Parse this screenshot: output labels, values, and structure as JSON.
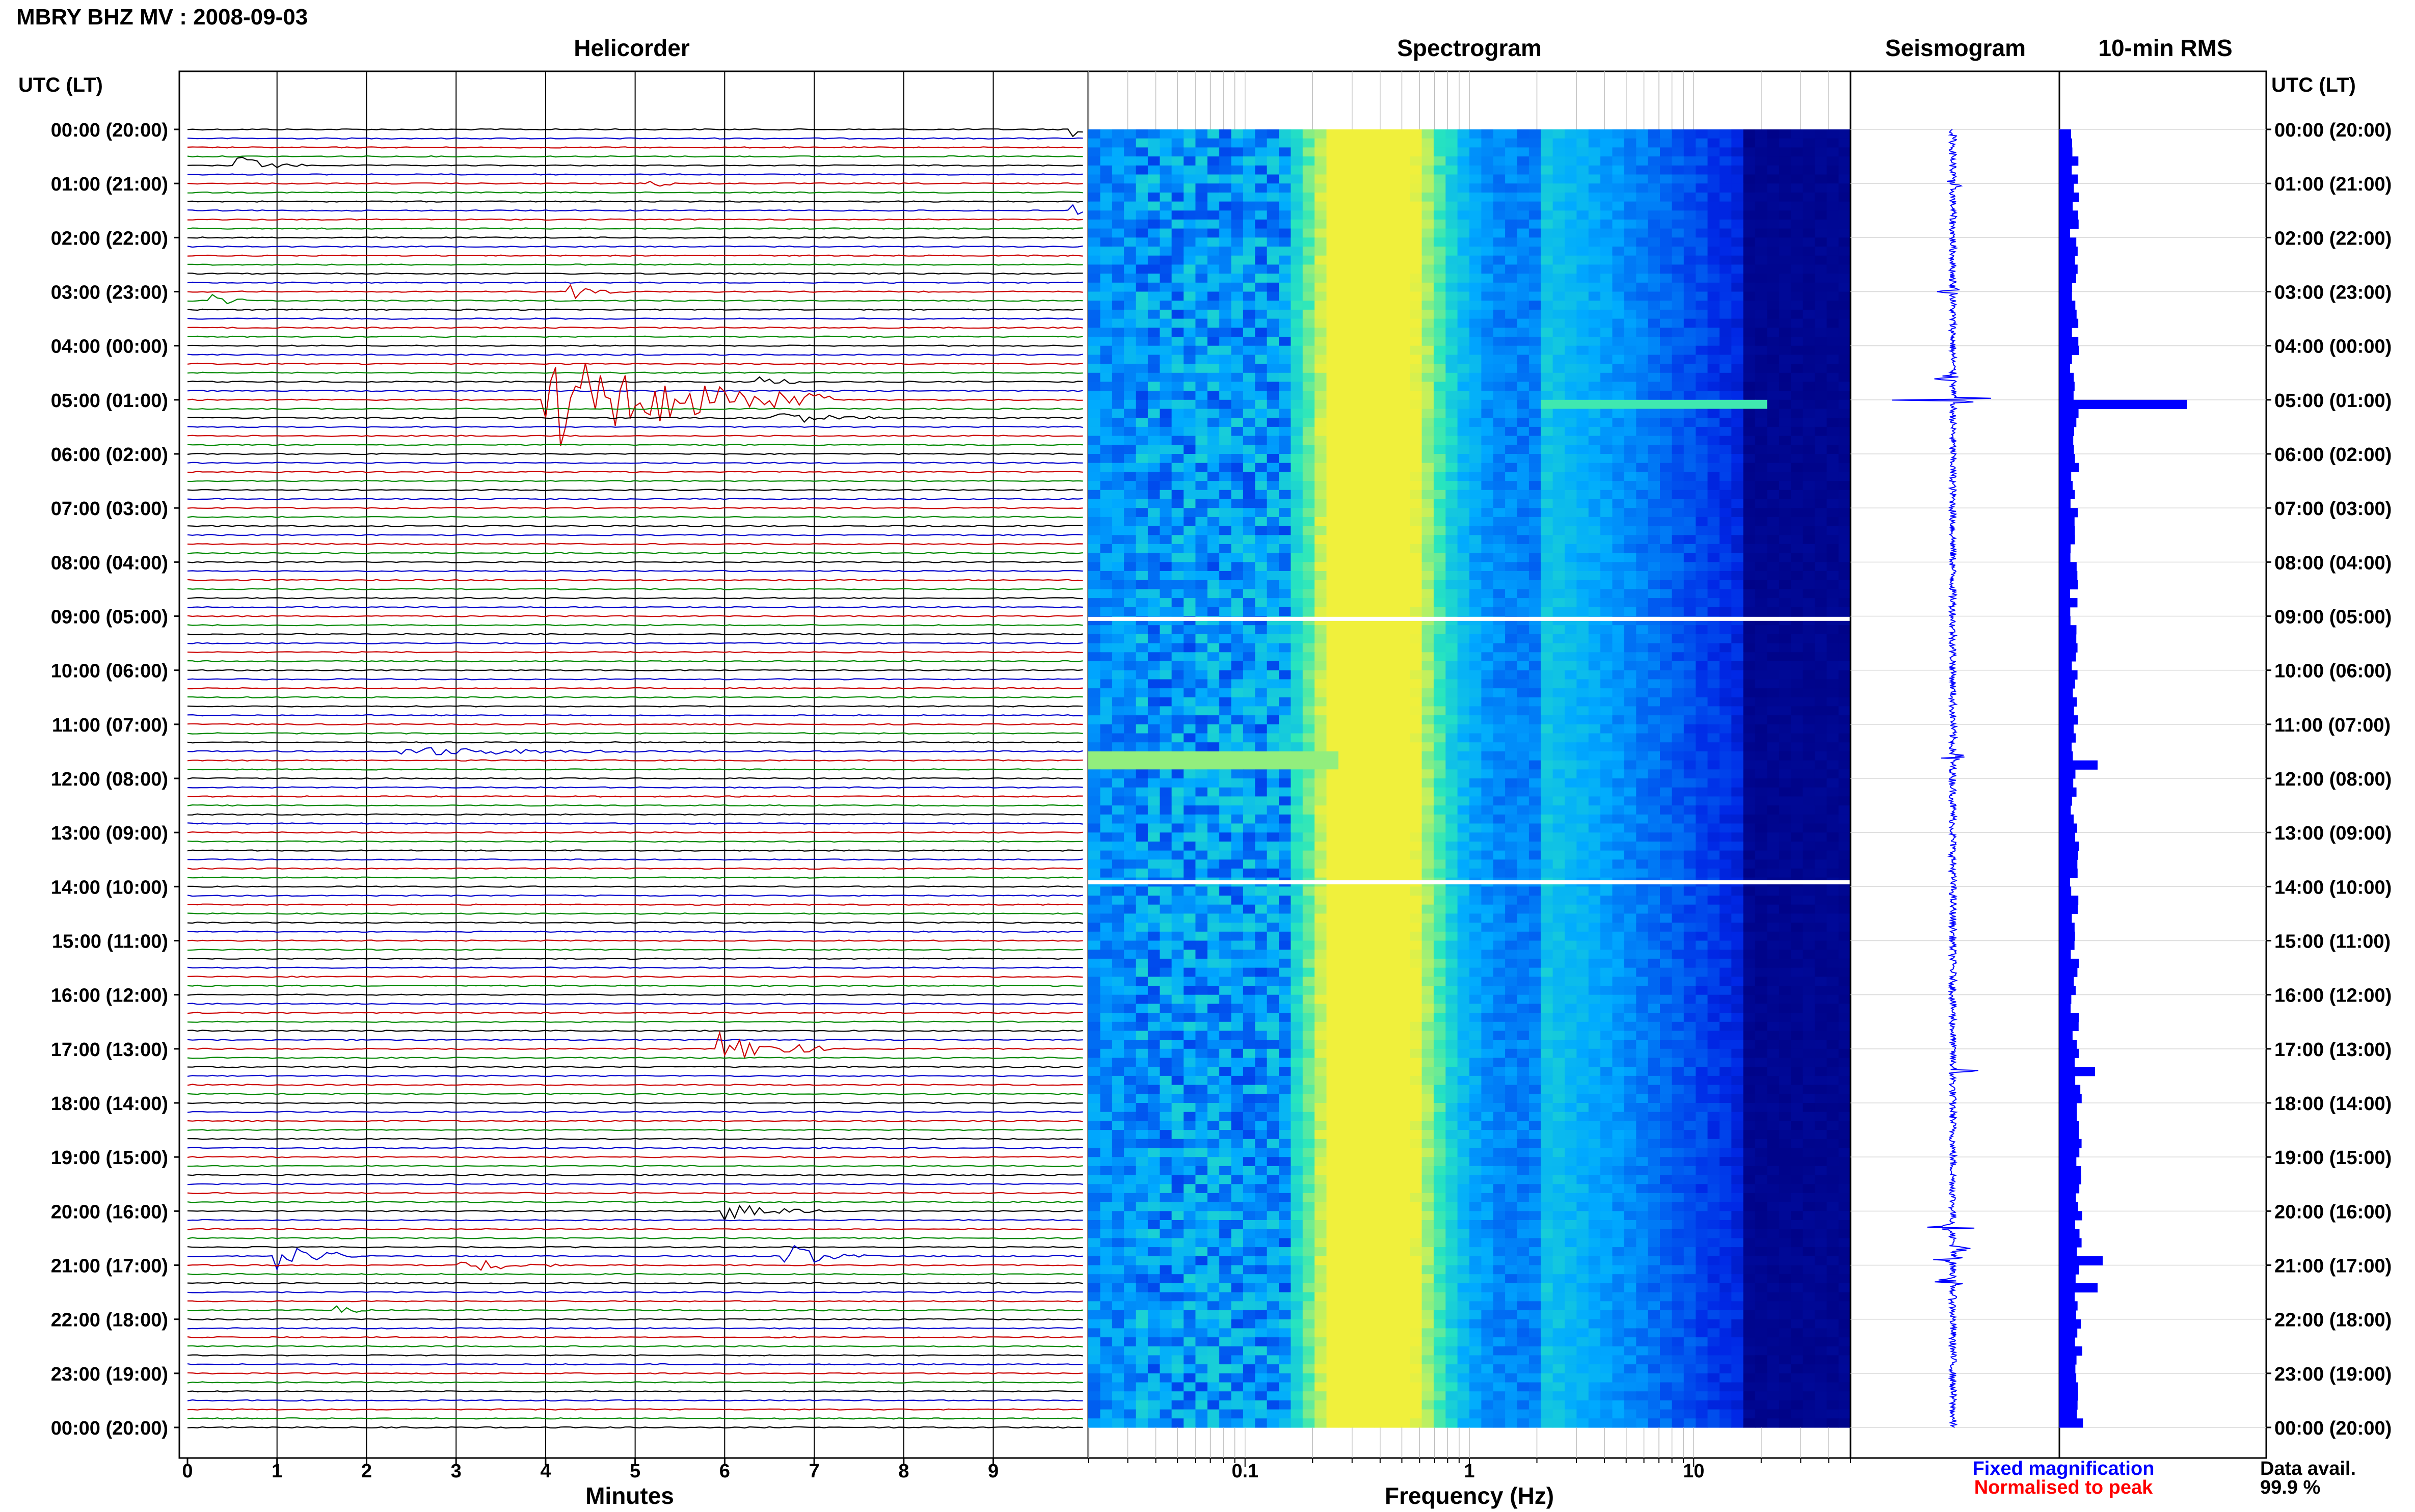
{
  "header": {
    "title": "MBRY BHZ MV : 2008-09-03",
    "utc_label_left": "UTC (LT)",
    "utc_label_right": "UTC (LT)"
  },
  "panels": {
    "helicorder": "Helicorder",
    "spectrogram": "Spectrogram",
    "seismogram": "Seismogram",
    "rms": "10-min RMS"
  },
  "time_labels": [
    "00:00 (20:00)",
    "01:00 (21:00)",
    "02:00 (22:00)",
    "03:00 (23:00)",
    "04:00 (00:00)",
    "05:00 (01:00)",
    "06:00 (02:00)",
    "07:00 (03:00)",
    "08:00 (04:00)",
    "09:00 (05:00)",
    "10:00 (06:00)",
    "11:00 (07:00)",
    "12:00 (08:00)",
    "13:00 (09:00)",
    "14:00 (10:00)",
    "15:00 (11:00)",
    "16:00 (12:00)",
    "17:00 (13:00)",
    "18:00 (14:00)",
    "19:00 (15:00)",
    "20:00 (16:00)",
    "21:00 (17:00)",
    "22:00 (18:00)",
    "23:00 (19:00)",
    "00:00 (20:00)"
  ],
  "axes": {
    "minutes_label": "Minutes",
    "minutes_ticks": [
      "0",
      "1",
      "2",
      "3",
      "4",
      "5",
      "6",
      "7",
      "8",
      "9"
    ],
    "frequency_label": "Frequency (Hz)",
    "frequency_ticks": [
      "0.1",
      "1",
      "10"
    ]
  },
  "legend": {
    "fixed": "Fixed magnification",
    "normalised": "Normalised to peak",
    "fixed_color": "#0000ff",
    "normalised_color": "#ff0000"
  },
  "availability": {
    "label": "Data avail.",
    "value": "99.9 %"
  },
  "colors": {
    "trace_cycle": [
      "#000000",
      "#0000cc",
      "#cc0000",
      "#008800"
    ],
    "spectrogram_low": "#000080",
    "spectrogram_high": "#e8f040",
    "seismogram": "#0000ff",
    "rms": "#0000ff"
  },
  "chart_data": [
    {
      "type": "line",
      "name": "helicorder",
      "x_unit": "minutes",
      "xlim": [
        0,
        10
      ],
      "rows_per_hour": 6,
      "row_minutes": 10,
      "hours": 24,
      "events": [
        {
          "hour": 0,
          "row": 0,
          "minute": 9.9,
          "amp": 0.4,
          "dur": 0.2
        },
        {
          "hour": 0,
          "row": 4,
          "minute": 0.6,
          "amp": 0.5,
          "dur": 0.3
        },
        {
          "hour": 1,
          "row": 0,
          "minute": 5.2,
          "amp": 0.3,
          "dur": 0.2
        },
        {
          "hour": 1,
          "row": 3,
          "minute": 9.9,
          "amp": 0.4,
          "dur": 0.2
        },
        {
          "hour": 3,
          "row": 0,
          "minute": 4.3,
          "amp": 0.45,
          "dur": 0.25
        },
        {
          "hour": 3,
          "row": 1,
          "minute": 0.3,
          "amp": 0.35,
          "dur": 0.2
        },
        {
          "hour": 4,
          "row": 4,
          "minute": 6.4,
          "amp": 0.5,
          "dur": 0.2
        },
        {
          "hour": 4,
          "row": 6,
          "minute": 4.0,
          "amp": 3.2,
          "dur": 1.3
        },
        {
          "hour": 5,
          "row": 2,
          "minute": 6.6,
          "amp": 0.4,
          "dur": 0.5
        },
        {
          "hour": 11,
          "row": 3,
          "minute": 2.4,
          "amp": 0.3,
          "dur": 1.4
        },
        {
          "hour": 16,
          "row": 6,
          "minute": 5.9,
          "amp": 1.0,
          "dur": 0.6
        },
        {
          "hour": 20,
          "row": 0,
          "minute": 6.0,
          "amp": 0.6,
          "dur": 0.5
        },
        {
          "hour": 20,
          "row": 5,
          "minute": 1.0,
          "amp": 0.9,
          "dur": 0.3
        },
        {
          "hour": 20,
          "row": 5,
          "minute": 6.7,
          "amp": 0.8,
          "dur": 0.4
        },
        {
          "hour": 20,
          "row": 5,
          "minute": 1.6,
          "amp": 0.3,
          "dur": 0.2
        },
        {
          "hour": 21,
          "row": 0,
          "minute": 3.1,
          "amp": 0.4,
          "dur": 0.6
        },
        {
          "hour": 21,
          "row": 5,
          "minute": 1.7,
          "amp": 0.3,
          "dur": 0.2
        }
      ]
    },
    {
      "type": "heatmap",
      "name": "spectrogram",
      "x_scale": "log",
      "xlim": [
        0.02,
        50
      ],
      "x_ticks": [
        0.1,
        1,
        10
      ],
      "ylim_hours": [
        0,
        24
      ],
      "peak_band_hz": [
        0.2,
        0.6
      ],
      "gaps_hours": [
        9.05,
        13.92
      ]
    },
    {
      "type": "line",
      "name": "seismogram",
      "ylim_hours": [
        0,
        24
      ],
      "bursts_hours": [
        1.0,
        3.0,
        4.6,
        5.0,
        11.6,
        17.4,
        20.3,
        20.7,
        20.9,
        21.3
      ]
    },
    {
      "type": "bar",
      "name": "10-min RMS",
      "orientation": "horizontal",
      "ylim_hours": [
        0,
        24
      ],
      "baseline": 0.12,
      "peaks": [
        {
          "hour": 5.0,
          "value": 1.0
        },
        {
          "hour": 11.6,
          "value": 0.3
        },
        {
          "hour": 17.4,
          "value": 0.28
        },
        {
          "hour": 20.9,
          "value": 0.34
        },
        {
          "hour": 21.3,
          "value": 0.3
        }
      ]
    }
  ]
}
